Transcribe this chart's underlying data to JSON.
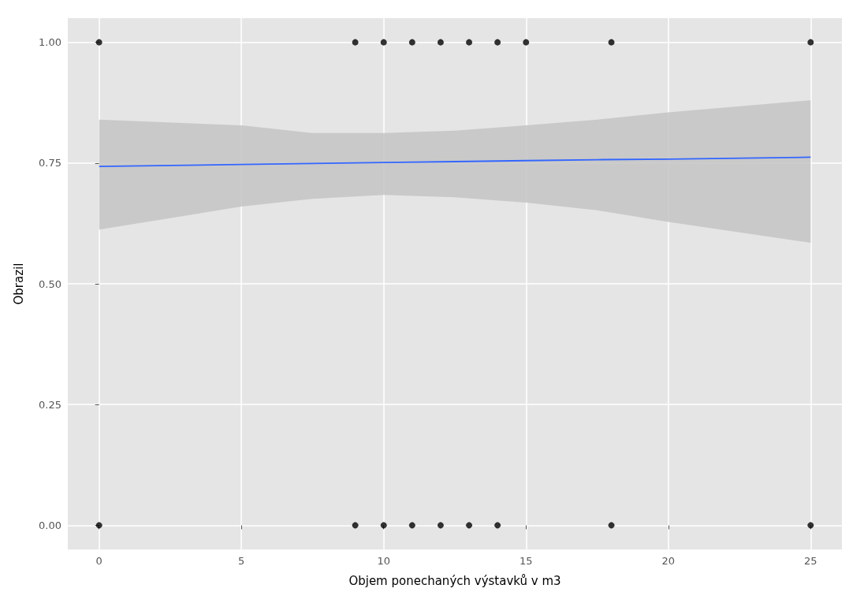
{
  "chart_data": {
    "type": "scatter",
    "xlabel": "Objem ponechaných výstavků v m3",
    "ylabel": "Obrazil",
    "xlim": [
      -1.1,
      26.1
    ],
    "xticks": [
      0,
      5,
      10,
      15,
      20,
      25
    ],
    "ylim": [
      -0.05,
      1.05
    ],
    "yticks": [
      {
        "value": 0,
        "label": "0.00"
      },
      {
        "value": 0.25,
        "label": "0.25"
      },
      {
        "value": 0.5,
        "label": "0.50"
      },
      {
        "value": 0.75,
        "label": "0.75"
      },
      {
        "value": 1,
        "label": "1.00"
      }
    ],
    "grid": true,
    "series": [
      {
        "marker": "circle",
        "color": "#000000",
        "x": [
          0,
          9,
          10,
          11,
          12,
          13,
          14,
          15,
          18,
          25,
          0,
          9,
          10,
          11,
          12,
          13,
          14,
          18,
          25
        ],
        "values": [
          1,
          1,
          1,
          1,
          1,
          1,
          1,
          1,
          1,
          1,
          0,
          0,
          0,
          0,
          0,
          0,
          0,
          0,
          0
        ]
      },
      {
        "type": "line",
        "color": "#3366ff",
        "line_style": "solid",
        "x": [
          0,
          5,
          7.5,
          10,
          12.5,
          15,
          17.5,
          20,
          25
        ],
        "values": [
          0.743,
          0.747,
          0.749,
          0.751,
          0.753,
          0.755,
          0.757,
          0.758,
          0.762
        ],
        "lower": [
          0.612,
          0.66,
          0.676,
          0.684,
          0.679,
          0.668,
          0.652,
          0.628,
          0.585
        ],
        "upper": [
          0.84,
          0.828,
          0.812,
          0.812,
          0.817,
          0.828,
          0.84,
          0.855,
          0.88
        ]
      }
    ]
  }
}
